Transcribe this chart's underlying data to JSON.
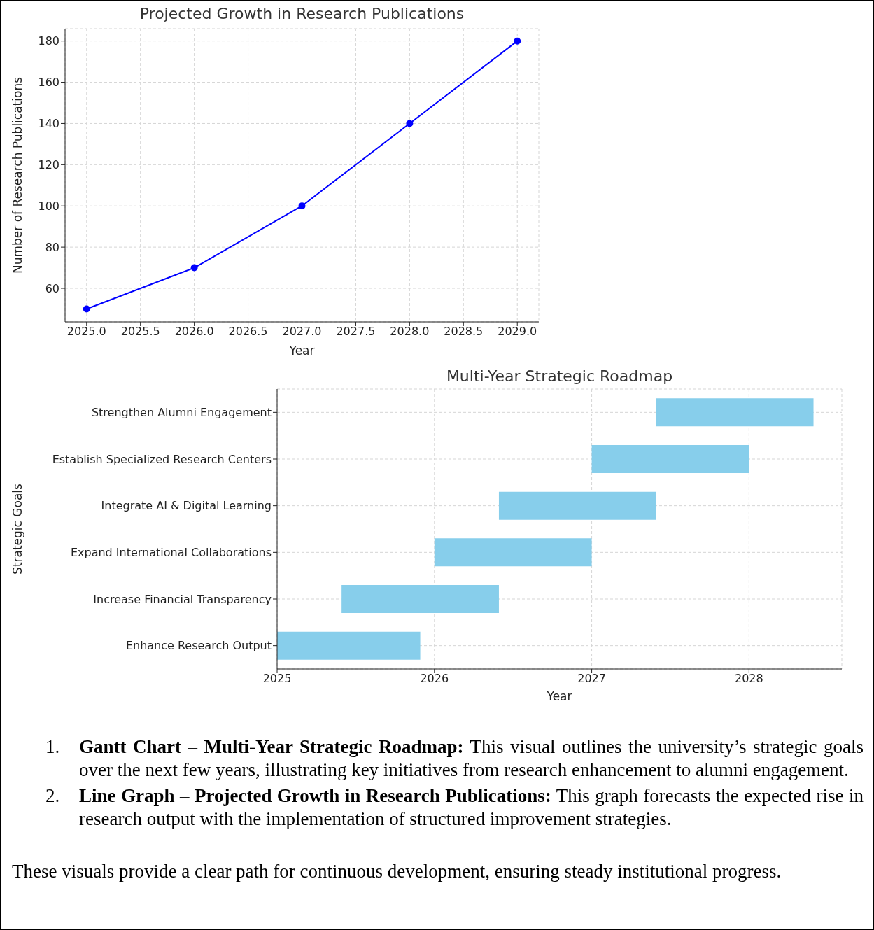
{
  "chart_data": [
    {
      "type": "line",
      "title": "Projected Growth in Research Publications",
      "xlabel": "Year",
      "ylabel": "Number of Research Publications",
      "x": [
        2025,
        2026,
        2027,
        2028,
        2029
      ],
      "series": [
        {
          "color": "#0000ff",
          "values": [
            50,
            70,
            100,
            140,
            180
          ]
        }
      ],
      "xlim": [
        2024.8,
        2029.2
      ],
      "ylim": [
        43.7,
        186
      ],
      "xticks": [
        {
          "value": 2025,
          "label": "2025.0"
        },
        {
          "value": 2025.5,
          "label": "2025.5"
        },
        {
          "value": 2026,
          "label": "2026.0"
        },
        {
          "value": 2026.5,
          "label": "2026.5"
        },
        {
          "value": 2027,
          "label": "2027.0"
        },
        {
          "value": 2027.5,
          "label": "2027.5"
        },
        {
          "value": 2028,
          "label": "2028.0"
        },
        {
          "value": 2028.5,
          "label": "2028.5"
        },
        {
          "value": 2029,
          "label": "2029.0"
        }
      ],
      "yticks": [
        60,
        80,
        100,
        120,
        140,
        160,
        180
      ],
      "grid": true,
      "marker": "circle",
      "line_style": "solid"
    },
    {
      "type": "bar",
      "orientation": "horizontal",
      "title": "Multi-Year Strategic Roadmap",
      "xlabel": "Year",
      "ylabel": "Strategic Goals",
      "categories": [
        "Strengthen Alumni Engagement",
        "Establish Specialized Research Centers",
        "Integrate AI & Digital Learning",
        "Expand International Collaborations",
        "Increase Financial Transparency",
        "Enhance Research Output"
      ],
      "base": [
        2027.41,
        2027,
        2026.41,
        2026,
        2025.41,
        2025
      ],
      "values": [
        1,
        1,
        1,
        1,
        1,
        0.91
      ],
      "color": "#87ceeb",
      "xlim": [
        2025,
        2028.59
      ],
      "xticks": [
        2025,
        2026,
        2027,
        2028
      ],
      "grid": true,
      "annotations": [
        "1. Gantt Chart – Multi-Year Strategic Roadmap: This visual outlines the university’s strategic goals over the next few years, illustrating key initiatives from research enhancement to alumni engagement.",
        "2. Line Graph – Projected Growth in Research Publications: This graph forecasts the expected rise in research output with the implementation of structured improvement strategies.",
        "These visuals provide a clear path for continuous development, ensuring steady institutional progress."
      ]
    }
  ]
}
